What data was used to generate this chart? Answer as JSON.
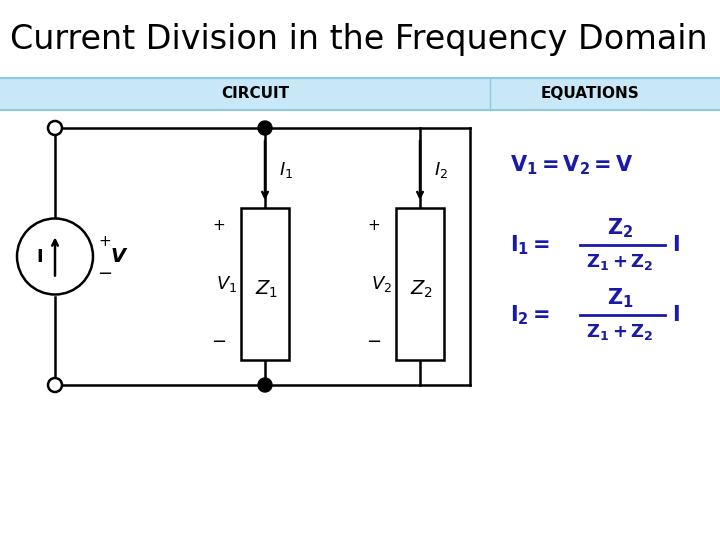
{
  "title": "Current Division in the Frequency Domain",
  "title_fontsize": 24,
  "title_color": "#000000",
  "background_color": "#ffffff",
  "header_bg_color": "#c8e8f8",
  "header_text_color": "#000000",
  "circuit_label": "CIRCUIT",
  "equations_label": "EQUATIONS",
  "eq_color": "#1a1aaa",
  "circuit_color": "#000000",
  "figsize": [
    7.2,
    5.4
  ],
  "dpi": 100
}
